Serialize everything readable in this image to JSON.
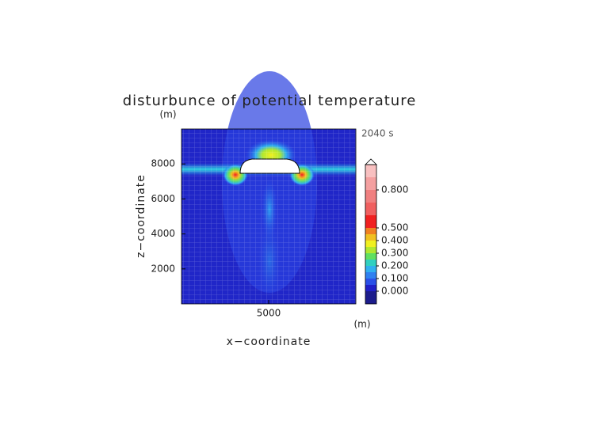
{
  "chart_data": {
    "type": "contour",
    "title": "disturbunce of potential temperature",
    "xlabel": "x−coordinate",
    "ylabel": "z−coordinate",
    "xunit": "(m)",
    "yunit": "(m)",
    "time_label": "2040 s",
    "xlim": [
      0,
      10000
    ],
    "ylim": [
      0,
      10000
    ],
    "xticks": [
      5000
    ],
    "yticks": [
      2000,
      4000,
      6000,
      8000
    ],
    "colorbar": {
      "clim": [
        -0.1,
        1.0
      ],
      "levels": [
        -0.1,
        0,
        0.05,
        0.1,
        0.15,
        0.2,
        0.25,
        0.3,
        0.35,
        0.4,
        0.45,
        0.5,
        0.6,
        0.7,
        0.8,
        0.9,
        1.0
      ],
      "colors": [
        "#1c1c8c",
        "#2020c8",
        "#2a50e8",
        "#2f80f0",
        "#30b0f0",
        "#30d0c0",
        "#60e060",
        "#b0e830",
        "#f0f020",
        "#f0c020",
        "#f08020",
        "#f02020",
        "#f06060",
        "#f08080",
        "#f4a0a0",
        "#f8c0c0"
      ],
      "ticks": [
        {
          "value": 0,
          "label": "0.000"
        },
        {
          "value": 0.1,
          "label": "0.100"
        },
        {
          "value": 0.2,
          "label": "0.200"
        },
        {
          "value": 0.3,
          "label": "0.300"
        },
        {
          "value": 0.4,
          "label": "0.400"
        },
        {
          "value": 0.5,
          "label": "0.500"
        },
        {
          "value": 0.8,
          "label": "0.800"
        }
      ]
    }
  }
}
